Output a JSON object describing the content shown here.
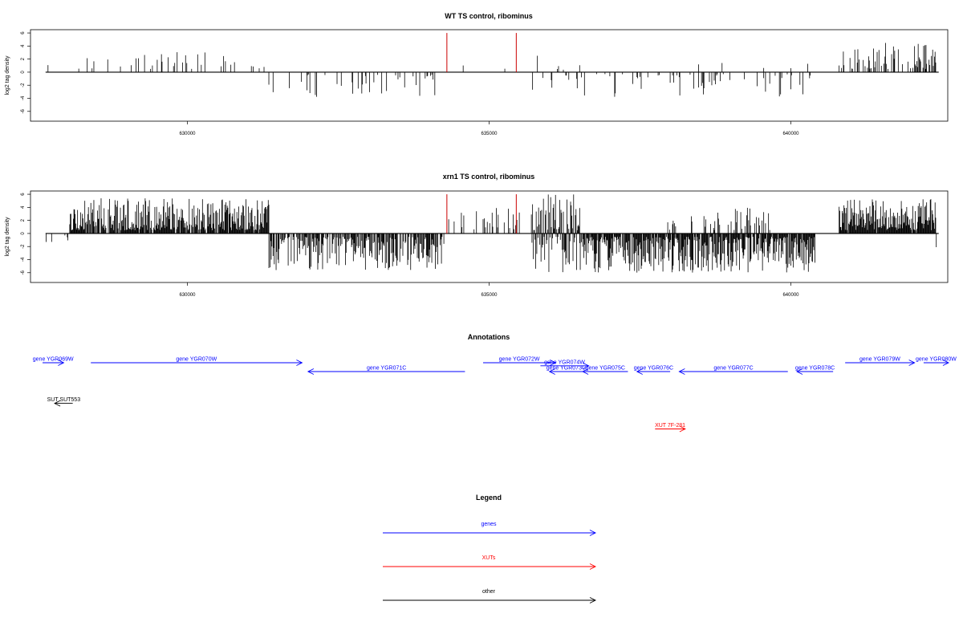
{
  "chart_data": [
    {
      "type": "bar",
      "title": "WT TS control, ribominus",
      "xlabel": "",
      "ylabel": "log2 tag density",
      "xlim": [
        627400,
        642600
      ],
      "ylim": [
        -7.5,
        6.5
      ],
      "xticks": [
        630000,
        635000,
        640000
      ],
      "xtick_labels": [
        "630000",
        "635000",
        "640000"
      ],
      "yticks": [
        -6,
        -4,
        -2,
        0,
        2,
        4,
        6
      ],
      "ytick_labels": [
        "-6",
        "-4",
        "-2",
        "0",
        "2",
        "4",
        "6"
      ],
      "highlight_color": "#cc0000",
      "highlight_lines": [
        {
          "x": 634300,
          "y": 6
        },
        {
          "x": 635450,
          "y": 6
        }
      ],
      "segments": [
        {
          "start": 627650,
          "end": 627700,
          "mode": "pos",
          "density": 0.05,
          "min": 0.3,
          "max": 1.3
        },
        {
          "start": 628200,
          "end": 631300,
          "mode": "pos",
          "density": 0.03,
          "min": 0.5,
          "max": 3.1
        },
        {
          "start": 631330,
          "end": 634100,
          "mode": "neg",
          "density": 0.028,
          "min": 0.3,
          "max": 3.8
        },
        {
          "start": 634400,
          "end": 635350,
          "mode": "pos",
          "density": 0.008,
          "min": 0.5,
          "max": 3.0
        },
        {
          "start": 635700,
          "end": 636600,
          "mode": "mix",
          "density": 0.04,
          "min": 0.3,
          "max": 4.3
        },
        {
          "start": 636600,
          "end": 640350,
          "mode": "neg",
          "density": 0.035,
          "min": 0.3,
          "max": 3.8
        },
        {
          "start": 638300,
          "end": 640400,
          "mode": "pos",
          "density": 0.008,
          "min": 0.5,
          "max": 2.3
        },
        {
          "start": 640800,
          "end": 642400,
          "mode": "pos",
          "density": 0.09,
          "min": 0.5,
          "max": 4.5
        }
      ]
    },
    {
      "type": "bar",
      "title": "xrn1 TS control, ribominus",
      "xlabel": "",
      "ylabel": "log2 tag density",
      "xlim": [
        627400,
        642600
      ],
      "ylim": [
        -7.5,
        6.5
      ],
      "xticks": [
        630000,
        635000,
        640000
      ],
      "xtick_labels": [
        "630000",
        "635000",
        "640000"
      ],
      "yticks": [
        -6,
        -4,
        -2,
        0,
        2,
        4,
        6
      ],
      "ytick_labels": [
        "-6",
        "-4",
        "-2",
        "0",
        "2",
        "4",
        "6"
      ],
      "highlight_color": "#cc0000",
      "highlight_lines": [
        {
          "x": 634300,
          "y": 6
        },
        {
          "x": 635450,
          "y": 6
        }
      ],
      "segments": [
        {
          "start": 627650,
          "end": 628050,
          "mode": "mix",
          "density": 0.03,
          "min": 0.3,
          "max": 2.2
        },
        {
          "start": 628050,
          "end": 631350,
          "mode": "pos",
          "density": 0.22,
          "min": 0.5,
          "max": 5.4
        },
        {
          "start": 631350,
          "end": 634250,
          "mode": "neg",
          "density": 0.17,
          "min": 0.5,
          "max": 5.6
        },
        {
          "start": 634300,
          "end": 635500,
          "mode": "pos",
          "density": 0.05,
          "min": 0.5,
          "max": 4.0
        },
        {
          "start": 635700,
          "end": 636500,
          "mode": "mix",
          "density": 0.25,
          "min": 0.5,
          "max": 6.0
        },
        {
          "start": 636500,
          "end": 640400,
          "mode": "neg",
          "density": 0.22,
          "min": 0.5,
          "max": 6.0
        },
        {
          "start": 637900,
          "end": 639700,
          "mode": "pos",
          "density": 0.05,
          "min": 0.5,
          "max": 4.0
        },
        {
          "start": 640800,
          "end": 642400,
          "mode": "pos",
          "density": 0.24,
          "min": 0.5,
          "max": 5.4
        },
        {
          "start": 642400,
          "end": 642450,
          "mode": "neg",
          "density": 0.05,
          "min": 2.0,
          "max": 3.5
        }
      ]
    }
  ],
  "annotations": {
    "title": "Annotations",
    "xlim": [
      627400,
      642600
    ],
    "colors": {
      "gene": "#0000ff",
      "xut": "#ff0000",
      "other": "#000000"
    },
    "features": [
      {
        "label": "gene YGR069W",
        "start": 627600,
        "end": 627950,
        "dir": "right",
        "row": 0,
        "kind": "gene"
      },
      {
        "label": "gene YGR070W",
        "start": 628400,
        "end": 631900,
        "dir": "right",
        "row": 0,
        "kind": "gene"
      },
      {
        "label": "gene YGR071C",
        "start": 632000,
        "end": 634600,
        "dir": "left",
        "row": 1,
        "kind": "gene"
      },
      {
        "label": "gene YGR072W",
        "start": 634900,
        "end": 636100,
        "dir": "right",
        "row": 0,
        "kind": "gene"
      },
      {
        "label": "gene YGR074W",
        "start": 635850,
        "end": 636650,
        "dir": "right",
        "row": 0.35,
        "kind": "gene"
      },
      {
        "label": "gene YGR073C",
        "start": 636000,
        "end": 636550,
        "dir": "left",
        "row": 1,
        "kind": "gene"
      },
      {
        "label": "gene YGR075C",
        "start": 636550,
        "end": 637300,
        "dir": "left",
        "row": 1,
        "kind": "gene"
      },
      {
        "label": "gene YGR076C",
        "start": 637450,
        "end": 638000,
        "dir": "left",
        "row": 1,
        "kind": "gene"
      },
      {
        "label": "gene YGR077C",
        "start": 638150,
        "end": 639950,
        "dir": "left",
        "row": 1,
        "kind": "gene"
      },
      {
        "label": "gene YGR078C",
        "start": 640100,
        "end": 640700,
        "dir": "left",
        "row": 1,
        "kind": "gene"
      },
      {
        "label": "gene YGR079W",
        "start": 640900,
        "end": 642050,
        "dir": "right",
        "row": 0,
        "kind": "gene"
      },
      {
        "label": "gene YGR080W",
        "start": 642200,
        "end": 643200,
        "dir": "right",
        "row": 0,
        "kind": "gene"
      },
      {
        "label": "SUT SUT553",
        "start": 627800,
        "end": 628100,
        "dir": "left",
        "row": 4.6,
        "kind": "other"
      },
      {
        "label": "XUT 7F-281",
        "start": 637750,
        "end": 638250,
        "dir": "right",
        "row": 7.5,
        "kind": "xut"
      }
    ]
  },
  "legend": {
    "title": "Legend",
    "items": [
      {
        "label": "genes",
        "kind": "gene"
      },
      {
        "label": "XUTs",
        "kind": "xut"
      },
      {
        "label": "other",
        "kind": "other"
      }
    ]
  }
}
